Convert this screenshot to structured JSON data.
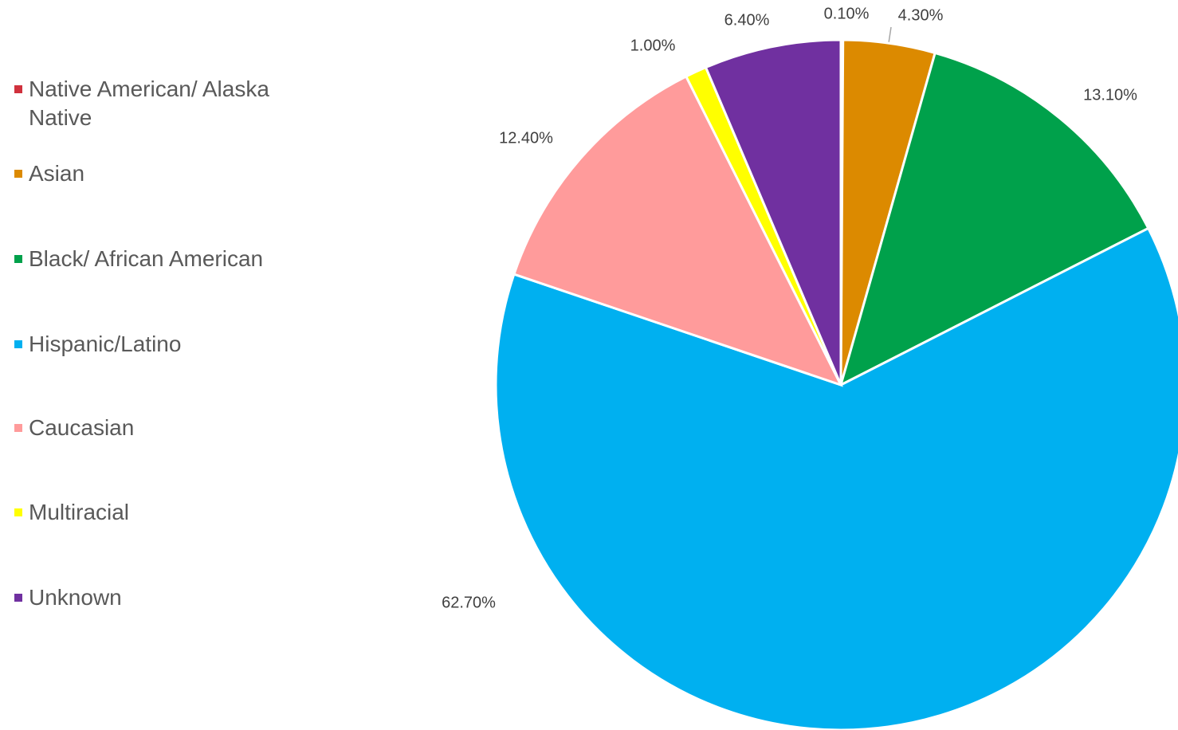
{
  "chart_data": {
    "type": "pie",
    "categories": [
      "Native American/ Alaska Native",
      "Asian",
      "Black/ African American",
      "Hispanic/Latino",
      "Caucasian",
      "Multiracial",
      "Unknown"
    ],
    "values": [
      0.1,
      4.3,
      13.1,
      62.7,
      12.4,
      1.0,
      6.4
    ],
    "value_labels": [
      "0.10%",
      "4.30%",
      "13.10%",
      "62.70%",
      "12.40%",
      "1.00%",
      "6.40%"
    ],
    "colors": [
      "#d0313d",
      "#dc8a00",
      "#00a14b",
      "#00b0f0",
      "#ff9b9b",
      "#ffff00",
      "#7030a0"
    ],
    "legend": "left"
  }
}
